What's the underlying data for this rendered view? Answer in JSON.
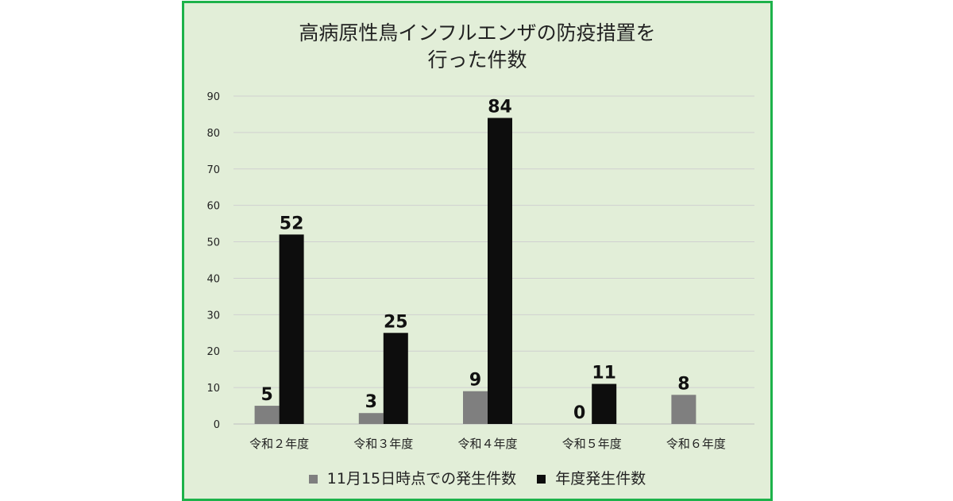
{
  "chart_data": {
    "type": "bar",
    "title_line1": "高病原性鳥インフルエンザの防疫措置を",
    "title_line2": "行った件数",
    "categories": [
      "令和２年度",
      "令和３年度",
      "令和４年度",
      "令和５年度",
      "令和６年度"
    ],
    "series": [
      {
        "name": "11月15日時点での発生件数",
        "values": [
          5,
          3,
          9,
          0,
          8
        ],
        "color": "#7f7f7f"
      },
      {
        "name": "年度発生件数",
        "values": [
          52,
          25,
          84,
          11,
          null
        ],
        "color": "#0d0d0d"
      }
    ],
    "ylim": [
      0,
      90
    ],
    "yticks": [
      0,
      10,
      20,
      30,
      40,
      50,
      60,
      70,
      80,
      90
    ],
    "grid": true,
    "legend_position": "bottom",
    "background": "#e2eed8",
    "border_color": "#1db24a"
  }
}
